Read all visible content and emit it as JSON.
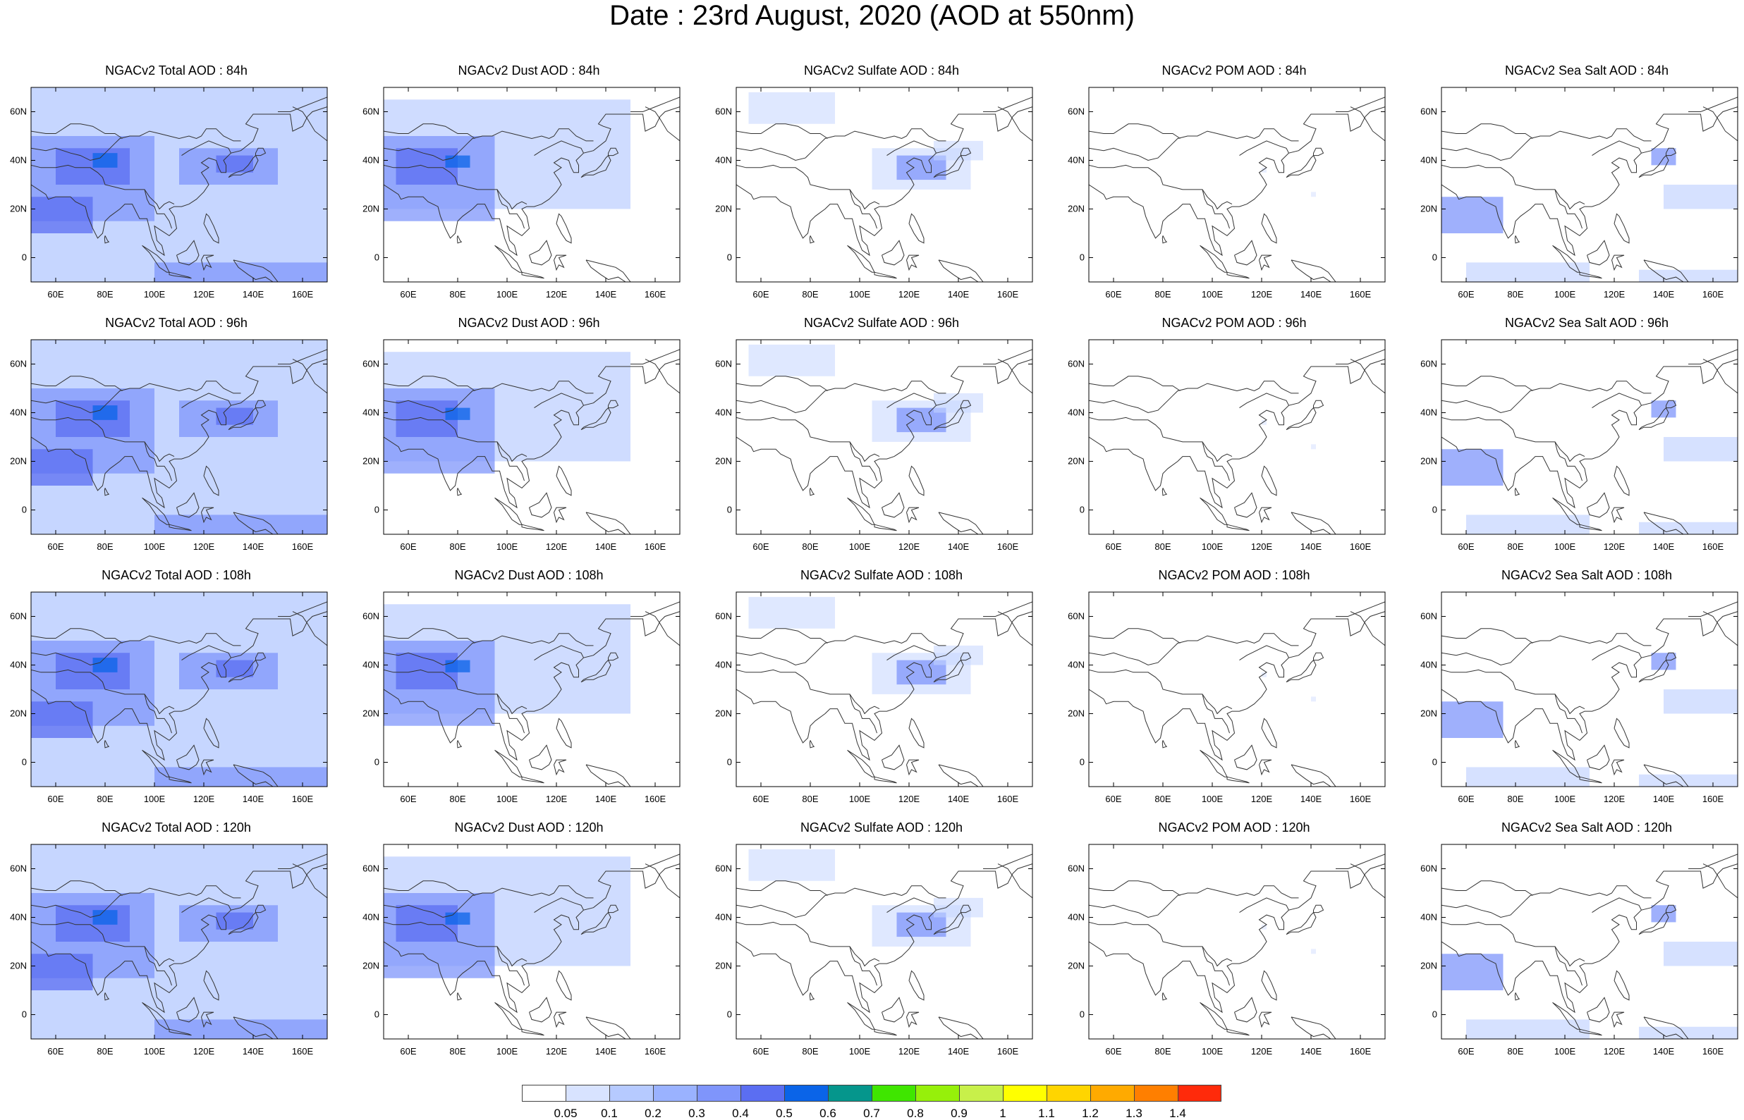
{
  "title": "Date : 23rd August, 2020 (AOD at 550nm)",
  "axes": {
    "lon_ticks": [
      "60E",
      "80E",
      "100E",
      "120E",
      "140E",
      "160E"
    ],
    "lon_values": [
      60,
      80,
      100,
      120,
      140,
      160
    ],
    "lat_ticks": [
      "60N",
      "40N",
      "20N",
      "0"
    ],
    "lat_values": [
      60,
      40,
      20,
      0
    ],
    "lon_range": [
      50,
      170
    ],
    "lat_range": [
      -10,
      70
    ]
  },
  "species_colors": {
    "Total": "#97b4ff",
    "Dust": "#a8c0ff",
    "Sulfate": "#c5d5ff",
    "POM": "#d5e0ff",
    "SeaSalt": "#b5c8ff"
  },
  "panels": [
    {
      "title": "NGACv2 Total AOD : 84h",
      "species": "Total",
      "lead": "84h"
    },
    {
      "title": "NGACv2 Dust AOD : 84h",
      "species": "Dust",
      "lead": "84h"
    },
    {
      "title": "NGACv2 Sulfate AOD : 84h",
      "species": "Sulfate",
      "lead": "84h"
    },
    {
      "title": "NGACv2 POM AOD : 84h",
      "species": "POM",
      "lead": "84h"
    },
    {
      "title": "NGACv2 Sea Salt AOD : 84h",
      "species": "SeaSalt",
      "lead": "84h"
    },
    {
      "title": "NGACv2 Total AOD : 96h",
      "species": "Total",
      "lead": "96h"
    },
    {
      "title": "NGACv2 Dust AOD : 96h",
      "species": "Dust",
      "lead": "96h"
    },
    {
      "title": "NGACv2 Sulfate AOD : 96h",
      "species": "Sulfate",
      "lead": "96h"
    },
    {
      "title": "NGACv2 POM AOD : 96h",
      "species": "POM",
      "lead": "96h"
    },
    {
      "title": "NGACv2 Sea Salt AOD : 96h",
      "species": "SeaSalt",
      "lead": "96h"
    },
    {
      "title": "NGACv2 Total AOD : 108h",
      "species": "Total",
      "lead": "108h"
    },
    {
      "title": "NGACv2 Dust AOD : 108h",
      "species": "Dust",
      "lead": "108h"
    },
    {
      "title": "NGACv2 Sulfate AOD : 108h",
      "species": "Sulfate",
      "lead": "108h"
    },
    {
      "title": "NGACv2 POM AOD : 108h",
      "species": "POM",
      "lead": "108h"
    },
    {
      "title": "NGACv2 Sea Salt AOD : 108h",
      "species": "SeaSalt",
      "lead": "108h"
    },
    {
      "title": "NGACv2 Total AOD : 120h",
      "species": "Total",
      "lead": "120h"
    },
    {
      "title": "NGACv2 Dust AOD : 120h",
      "species": "Dust",
      "lead": "120h"
    },
    {
      "title": "NGACv2 Sulfate AOD : 120h",
      "species": "Sulfate",
      "lead": "120h"
    },
    {
      "title": "NGACv2 POM AOD : 120h",
      "species": "POM",
      "lead": "120h"
    },
    {
      "title": "NGACv2 Sea Salt  AOD : 120h",
      "species": "SeaSalt",
      "lead": "120h"
    }
  ],
  "colorbar": {
    "colors": [
      "#ffffff",
      "#d8e3ff",
      "#b6caff",
      "#9ab2ff",
      "#7f95fb",
      "#5b6ef2",
      "#0a64e8",
      "#05968c",
      "#3fe600",
      "#96f00a",
      "#c8f04a",
      "#ffff00",
      "#ffd500",
      "#ffaa00",
      "#ff7f00",
      "#ff2a0a"
    ],
    "labels": [
      "0.05",
      "0.1",
      "0.2",
      "0.3",
      "0.4",
      "0.5",
      "0.6",
      "0.7",
      "0.8",
      "0.9",
      "1",
      "1.1",
      "1.2",
      "1.3",
      "1.4"
    ]
  }
}
